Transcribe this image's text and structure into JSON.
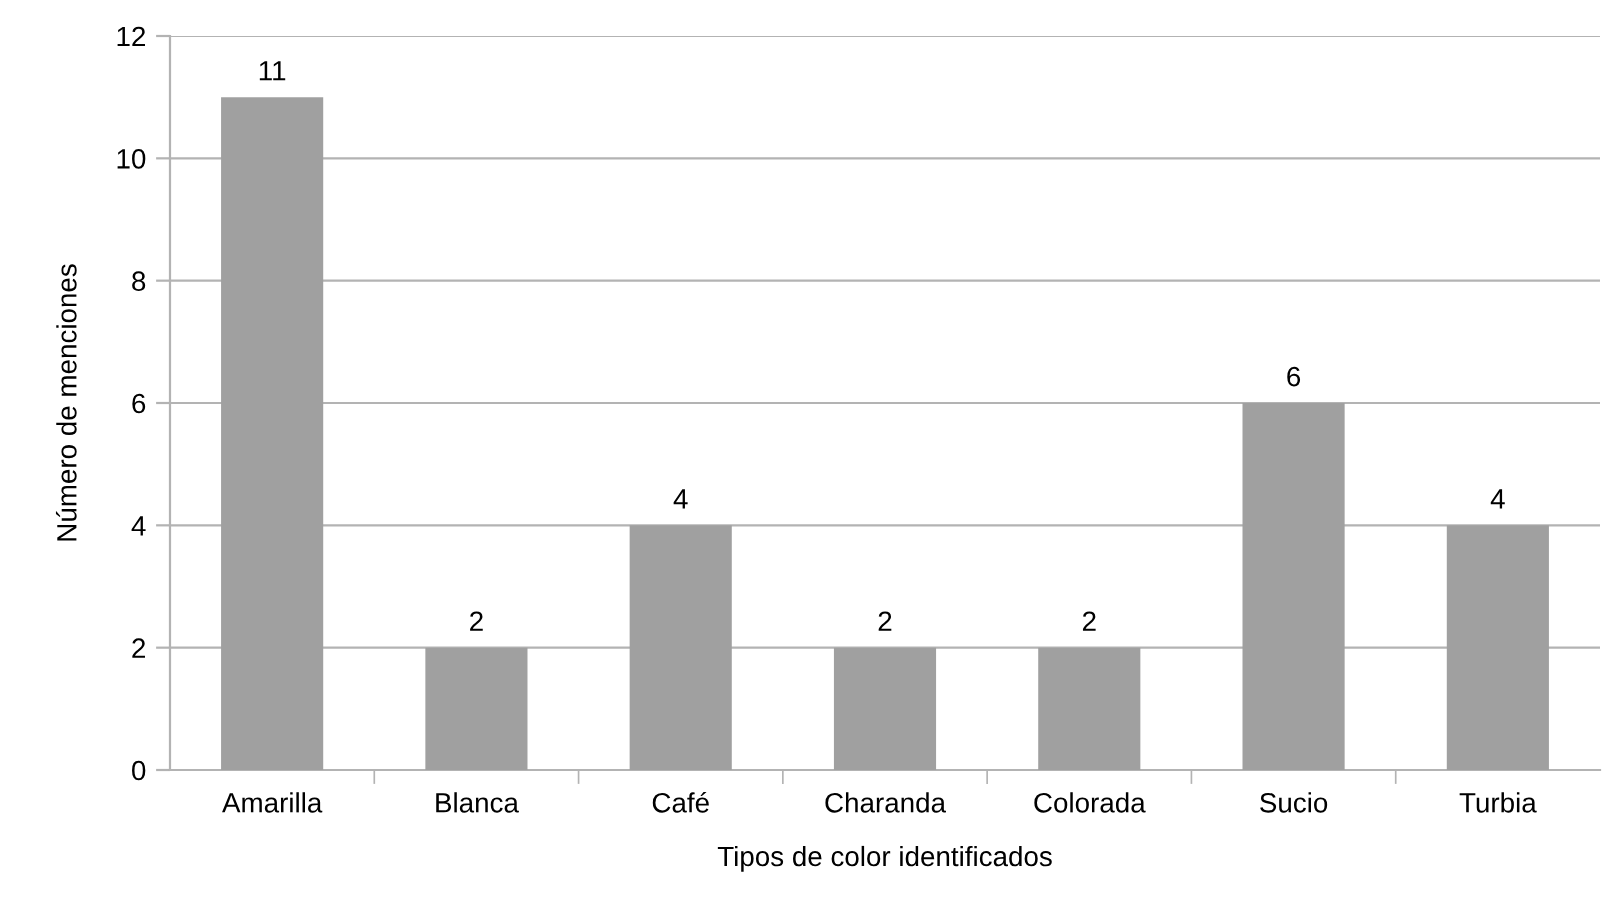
{
  "chart_data": {
    "type": "bar",
    "xlabel": "Tipos de color identificados",
    "ylabel": "Número de menciones",
    "categories": [
      "Amarilla",
      "Blanca",
      "Café",
      "Charanda",
      "Colorada",
      "Sucio",
      "Turbia"
    ],
    "values": [
      11,
      2,
      4,
      2,
      2,
      6,
      4
    ],
    "color": "#a0a0a0",
    "ylim": [
      0,
      12
    ],
    "yticks": [
      0,
      2,
      4,
      6,
      8,
      10,
      12
    ],
    "grid": "y",
    "data_labels": true
  }
}
